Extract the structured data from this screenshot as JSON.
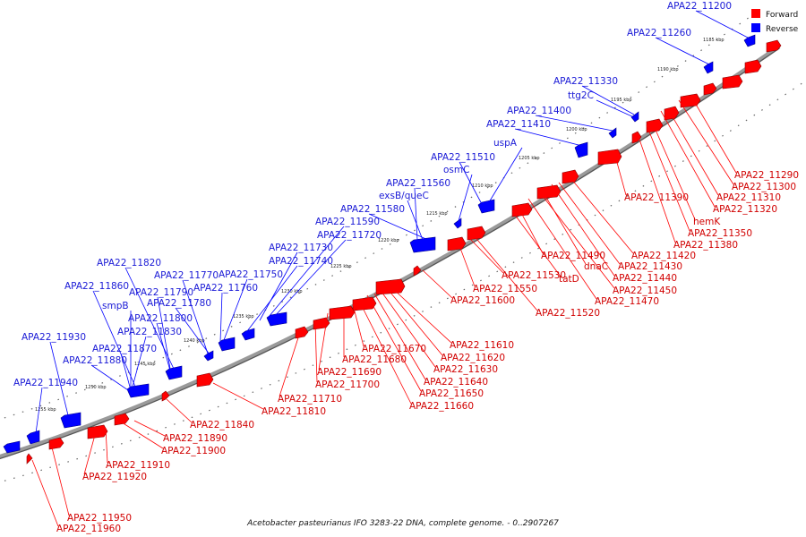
{
  "legend": {
    "forward": {
      "label": "Forward",
      "color": "#ff0000"
    },
    "reverse": {
      "label": "Reverse",
      "color": "#0000ff"
    }
  },
  "caption": "Acetobacter pasteurianus IFO 3283-22 DNA, complete genome. - 0..2907267",
  "ticks": [
    "1185 kbp",
    "1190 kbp",
    "1195 kbp",
    "1200 kbp",
    "1205 kbp",
    "1210 kbp",
    "1215 kbp",
    "1220 kbp",
    "1225 kbp",
    "1230 kbp",
    "1235 kbp",
    "1240 kbp",
    "1245 kbp",
    "1250 kbp",
    "1255 kbp"
  ],
  "reverse_labels": [
    "APA22_11200",
    "APA22_11260",
    "APA22_11330",
    "ttg2C",
    "APA22_11400",
    "APA22_11410",
    "uspA",
    "APA22_11510",
    "osmC",
    "APA22_11560",
    "exsB/queC",
    "APA22_11580",
    "APA22_11590",
    "APA22_11720",
    "APA22_11730",
    "APA22_11740",
    "APA22_11750",
    "APA22_11760",
    "APA22_11770",
    "APA22_11780",
    "APA22_11790",
    "APA22_11800",
    "APA22_11820",
    "APA22_11830",
    "APA22_11860",
    "smpB",
    "APA22_11870",
    "APA22_11880",
    "APA22_11930",
    "APA22_11940"
  ],
  "forward_labels": [
    "APA22_11290",
    "APA22_11300",
    "APA22_11310",
    "APA22_11320",
    "hemK",
    "APA22_11350",
    "APA22_11380",
    "APA22_11390",
    "APA22_11420",
    "APA22_11430",
    "APA22_11440",
    "dnaC",
    "APA22_11450",
    "APA22_11470",
    "APA22_11490",
    "tatD",
    "APA22_11520",
    "APA22_11530",
    "APA22_11550",
    "APA22_11600",
    "APA22_11610",
    "APA22_11620",
    "APA22_11630",
    "APA22_11640",
    "APA22_11650",
    "APA22_11660",
    "APA22_11670",
    "APA22_11680",
    "APA22_11690",
    "APA22_11700",
    "APA22_11710",
    "APA22_11810",
    "APA22_11840",
    "APA22_11890",
    "APA22_11900",
    "APA22_11910",
    "APA22_11920",
    "APA22_11950",
    "APA22_11960"
  ]
}
